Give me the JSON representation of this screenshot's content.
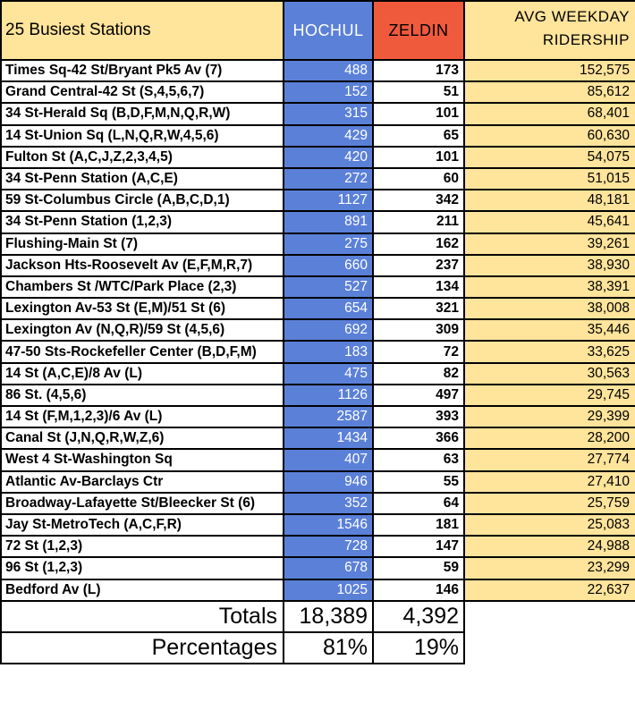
{
  "header": {
    "station": "25 Busiest Stations",
    "hochul": "HOCHUL",
    "zeldin": "ZELDIN",
    "ridership_line1": "AVG WEEKDAY",
    "ridership_line2": "RIDERSHIP"
  },
  "rows": [
    {
      "station": "Times Sq-42 St/Bryant Pk5 Av (7)",
      "hochul": "488",
      "zeldin": "173",
      "ridership": "152,575"
    },
    {
      "station": "Grand Central-42 St (S,4,5,6,7)",
      "hochul": "152",
      "zeldin": "51",
      "ridership": "85,612"
    },
    {
      "station": "34 St-Herald Sq (B,D,F,M,N,Q,R,W)",
      "hochul": "315",
      "zeldin": "101",
      "ridership": "68,401"
    },
    {
      "station": "14 St-Union Sq (L,N,Q,R,W,4,5,6)",
      "hochul": "429",
      "zeldin": "65",
      "ridership": "60,630"
    },
    {
      "station": "Fulton St (A,C,J,Z,2,3,4,5)",
      "hochul": "420",
      "zeldin": "101",
      "ridership": "54,075"
    },
    {
      "station": "34 St-Penn Station (A,C,E)",
      "hochul": "272",
      "zeldin": "60",
      "ridership": "51,015"
    },
    {
      "station": "59 St-Columbus Circle (A,B,C,D,1)",
      "hochul": "1127",
      "zeldin": "342",
      "ridership": "48,181"
    },
    {
      "station": "34 St-Penn Station (1,2,3)",
      "hochul": "891",
      "zeldin": "211",
      "ridership": "45,641"
    },
    {
      "station": "Flushing-Main St (7)",
      "hochul": "275",
      "zeldin": "162",
      "ridership": "39,261"
    },
    {
      "station": "Jackson Hts-Roosevelt Av (E,F,M,R,7)",
      "hochul": "660",
      "zeldin": "237",
      "ridership": "38,930"
    },
    {
      "station": "Chambers St /WTC/Park Place (2,3)",
      "hochul": "527",
      "zeldin": "134",
      "ridership": "38,391"
    },
    {
      "station": "Lexington Av-53 St (E,M)/51 St (6)",
      "hochul": "654",
      "zeldin": "321",
      "ridership": "38,008"
    },
    {
      "station": "Lexington Av (N,Q,R)/59 St (4,5,6)",
      "hochul": "692",
      "zeldin": "309",
      "ridership": "35,446"
    },
    {
      "station": "47-50 Sts-Rockefeller Center (B,D,F,M)",
      "hochul": "183",
      "zeldin": "72",
      "ridership": "33,625"
    },
    {
      "station": "14 St (A,C,E)/8 Av (L)",
      "hochul": "475",
      "zeldin": "82",
      "ridership": "30,563"
    },
    {
      "station": "86 St. (4,5,6)",
      "hochul": "1126",
      "zeldin": "497",
      "ridership": "29,745"
    },
    {
      "station": "14 St (F,M,1,2,3)/6 Av (L)",
      "hochul": "2587",
      "zeldin": "393",
      "ridership": "29,399"
    },
    {
      "station": "Canal St (J,N,Q,R,W,Z,6)",
      "hochul": "1434",
      "zeldin": "366",
      "ridership": "28,200"
    },
    {
      "station": "West 4 St-Washington Sq",
      "hochul": "407",
      "zeldin": "63",
      "ridership": "27,774"
    },
    {
      "station": "Atlantic Av-Barclays Ctr",
      "hochul": "946",
      "zeldin": "55",
      "ridership": "27,410"
    },
    {
      "station": "Broadway-Lafayette St/Bleecker St (6)",
      "hochul": "352",
      "zeldin": "64",
      "ridership": "25,759"
    },
    {
      "station": "Jay St-MetroTech (A,C,F,R)",
      "hochul": "1546",
      "zeldin": "181",
      "ridership": "25,083"
    },
    {
      "station": "72 St (1,2,3)",
      "hochul": "728",
      "zeldin": "147",
      "ridership": "24,988"
    },
    {
      "station": "96 St (1,2,3)",
      "hochul": "678",
      "zeldin": "59",
      "ridership": "23,299"
    },
    {
      "station": "Bedford Av (L)",
      "hochul": "1025",
      "zeldin": "146",
      "ridership": "22,637"
    }
  ],
  "totals": {
    "label": "Totals",
    "hochul": "18,389",
    "zeldin": "4,392"
  },
  "percentages": {
    "label": "Percentages",
    "hochul": "81%",
    "zeldin": "19%"
  },
  "colors": {
    "hochul": "#5b80d8",
    "zeldin": "#f05a3c",
    "ridership": "#ffe49b"
  }
}
